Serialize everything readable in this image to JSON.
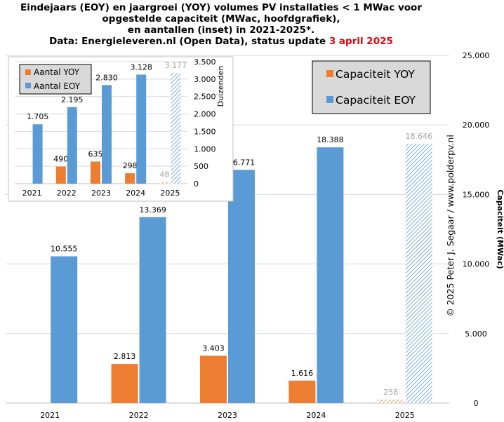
{
  "title": {
    "line1": "Eindejaars (EOY) en jaargroei (YOY) volumes PV installaties < 1 MWac voor",
    "line2": "opgestelde capaciteit (MWac, hoofdgrafiek),",
    "line3": "en aantallen (inset) in 2021-2025*.",
    "line4_prefix": "Data: Energieleveren.nl (Open Data), status update ",
    "line4_date": "3 april 2025"
  },
  "colors": {
    "yoy": "#ed7d31",
    "eoy": "#5b9bd5",
    "grid": "#d9d9d9",
    "highlight": "#e8000b",
    "partial_label": "#a6a6a6"
  },
  "chart_data": [
    {
      "type": "bar",
      "role": "main",
      "categories": [
        "2021",
        "2022",
        "2023",
        "2024",
        "2025"
      ],
      "series": [
        {
          "name": "Capaciteit YOY",
          "values": [
            null,
            2813,
            3403,
            1616,
            258
          ],
          "labels": [
            "",
            "2.813",
            "3.403",
            "1.616",
            "258"
          ]
        },
        {
          "name": "Capaciteit EOY",
          "values": [
            10555,
            13369,
            16771,
            18388,
            18646
          ],
          "labels": [
            "10.555",
            "13.369",
            "16.771",
            "18.388",
            "18.646"
          ]
        }
      ],
      "partial_category": "2025",
      "ylabel": "Capaciteit (MWac)",
      "ylim": [
        0,
        25000
      ],
      "yticks": [
        0,
        5000,
        10000,
        15000,
        20000,
        25000
      ],
      "ytick_labels": [
        "0",
        "5.000",
        "10.000",
        "15.000",
        "20.000",
        "25.000"
      ],
      "grid": true,
      "legend_position": "top-right",
      "watermark": "© 2025 Peter J. Segaar / www.polderpv.nl"
    },
    {
      "type": "bar",
      "role": "inset",
      "categories": [
        "2021",
        "2022",
        "2023",
        "2024",
        "2025"
      ],
      "series": [
        {
          "name": "Aantal YOY",
          "values": [
            null,
            490,
            635,
            298,
            48
          ],
          "labels": [
            "",
            "490",
            "635",
            "298",
            "48"
          ]
        },
        {
          "name": "Aantal EOY",
          "values": [
            1705,
            2195,
            2830,
            3128,
            3177
          ],
          "labels": [
            "1.705",
            "2.195",
            "2.830",
            "3.128",
            "3.177"
          ]
        }
      ],
      "partial_category": "2025",
      "ylabel": "Duizenden",
      "ylim": [
        0,
        3500
      ],
      "yticks": [
        0,
        500,
        1000,
        1500,
        2000,
        2500,
        3000,
        3500
      ],
      "ytick_labels": [
        "0",
        "500",
        "1.000",
        "1.500",
        "2.000",
        "2.500",
        "3.000",
        "3.500"
      ],
      "grid": true,
      "legend_position": "top-left"
    }
  ]
}
